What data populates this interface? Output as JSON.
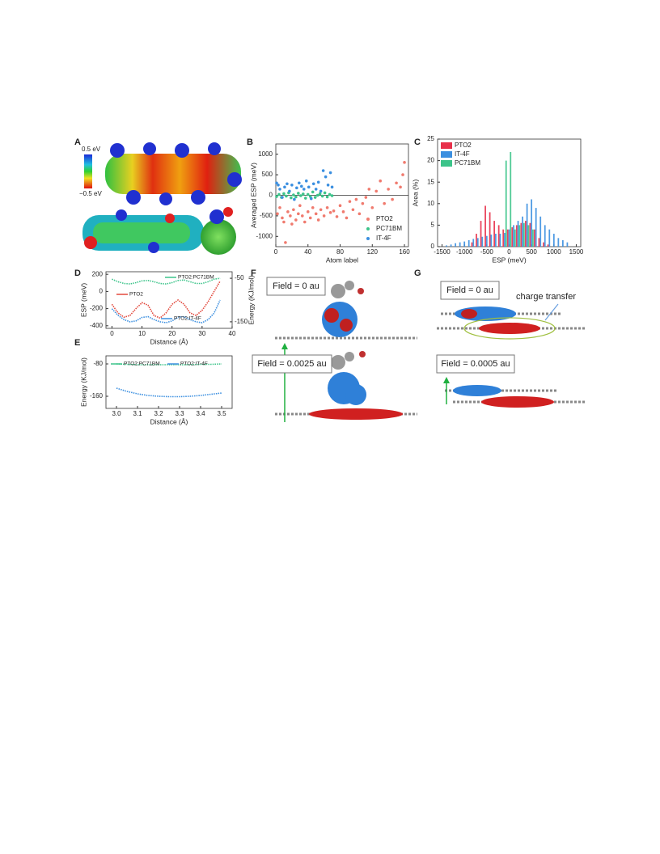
{
  "figure": {
    "panel_labels": [
      "A",
      "B",
      "C",
      "D",
      "E",
      "F",
      "G"
    ],
    "colorbar_labels": [
      "0.5 eV",
      "−0.5 eV"
    ],
    "field_labels_f": [
      "Field = 0 au",
      "Field = 0.0025 au"
    ],
    "field_labels_g": [
      "Field = 0 au",
      "Field = 0.0005 au"
    ],
    "annotation_g": "charge transfer"
  },
  "chart_data": [
    {
      "type": "scatter",
      "xlabel": "Atom label",
      "ylabel": "Averaged ESP (meV)",
      "xlim": [
        0,
        165
      ],
      "xticks": [
        0,
        40,
        80,
        120,
        160
      ],
      "ylim": [
        -1250,
        1250
      ],
      "yticks": [
        -1000,
        -500,
        0,
        500,
        1000
      ],
      "legend": "lower right",
      "series": [
        {
          "name": "PTO2",
          "color": "#f07a6e",
          "x": [
            2,
            5,
            8,
            10,
            12,
            15,
            18,
            20,
            22,
            25,
            28,
            30,
            33,
            36,
            40,
            43,
            46,
            50,
            53,
            56,
            60,
            64,
            68,
            72,
            76,
            80,
            84,
            88,
            92,
            96,
            100,
            104,
            108,
            112,
            116,
            120,
            125,
            130,
            135,
            140,
            145,
            150,
            155,
            158,
            160
          ],
          "values": [
            -450,
            -300,
            -550,
            -650,
            -1150,
            -400,
            -500,
            -700,
            -350,
            -600,
            -450,
            -250,
            -500,
            -650,
            -400,
            -550,
            -300,
            -450,
            -600,
            -350,
            -500,
            -300,
            -420,
            -380,
            -520,
            -250,
            -400,
            -550,
            -150,
            -350,
            -100,
            -450,
            -200,
            -50,
            150,
            -300,
            100,
            350,
            -200,
            150,
            -100,
            300,
            200,
            500,
            800
          ]
        },
        {
          "name": "PC71BM",
          "color": "#3cc48a",
          "x": [
            1,
            4,
            7,
            10,
            13,
            16,
            19,
            22,
            25,
            28,
            31,
            34,
            37,
            40,
            43,
            46,
            49,
            52,
            55,
            58,
            61,
            64,
            67,
            70
          ],
          "values": [
            -30,
            20,
            -50,
            40,
            -20,
            60,
            -60,
            10,
            -40,
            50,
            -10,
            30,
            -70,
            20,
            -30,
            80,
            -50,
            0,
            40,
            -20,
            60,
            -40,
            20,
            -10
          ]
        },
        {
          "name": "IT-4F",
          "color": "#3b8fe0",
          "x": [
            1,
            3,
            5,
            8,
            11,
            14,
            17,
            20,
            23,
            26,
            29,
            32,
            35,
            38,
            41,
            44,
            47,
            50,
            53,
            56,
            59,
            62,
            65,
            68,
            70
          ],
          "values": [
            300,
            250,
            150,
            -50,
            200,
            280,
            100,
            250,
            -100,
            180,
            300,
            220,
            150,
            350,
            200,
            -80,
            280,
            150,
            320,
            100,
            600,
            450,
            250,
            550,
            200
          ]
        }
      ]
    },
    {
      "type": "bar",
      "xlabel": "ESP (meV)",
      "ylabel": "Area (%)",
      "xlim": [
        -1600,
        1600
      ],
      "xticks": [
        -1500,
        -1000,
        -500,
        0,
        500,
        1000,
        1500
      ],
      "ylim": [
        0,
        25
      ],
      "yticks": [
        0,
        5,
        10,
        15,
        20,
        25
      ],
      "legend": "upper left",
      "x": [
        -1400,
        -1300,
        -1200,
        -1100,
        -1000,
        -900,
        -800,
        -700,
        -600,
        -500,
        -400,
        -300,
        -200,
        -100,
        0,
        100,
        200,
        300,
        400,
        500,
        600,
        700,
        800,
        900,
        1000,
        1100,
        1200,
        1300
      ],
      "series": [
        {
          "name": "PTO2",
          "color": "#e8304a",
          "values": [
            0,
            0,
            0,
            0,
            0,
            0,
            1,
            3,
            6,
            9.5,
            8,
            6,
            5,
            4,
            4,
            4.5,
            5,
            5.5,
            6,
            5.5,
            4,
            2,
            1,
            0.5,
            0,
            0,
            0,
            0
          ]
        },
        {
          "name": "IT-4F",
          "color": "#3b8fe0",
          "values": [
            0.3,
            0.5,
            0.8,
            1,
            1.2,
            1.5,
            1.8,
            2,
            2.3,
            2.5,
            2.8,
            3,
            3,
            3.2,
            4,
            5,
            6,
            7,
            10,
            11,
            9,
            7,
            5,
            4,
            3,
            2,
            1.5,
            1
          ]
        },
        {
          "name": "PC71BM",
          "color": "#3cc48a",
          "values": [
            0,
            0,
            0,
            0,
            0,
            0,
            0,
            0,
            0,
            0,
            0,
            0,
            0,
            20,
            22,
            4,
            5,
            5.5,
            5,
            4,
            0,
            0,
            0,
            0,
            0,
            0,
            0,
            0
          ]
        }
      ]
    },
    {
      "type": "line",
      "xlabel": "Distance (Å)",
      "ylabel": "ESP (meV)",
      "y2label": "Energy (KJ/mol)",
      "xlim": [
        -2,
        40
      ],
      "xticks": [
        0,
        10,
        20,
        30,
        40
      ],
      "ylim": [
        -430,
        230
      ],
      "yticks": [
        -400,
        -200,
        0,
        200
      ],
      "y2lim": [
        -165,
        -35
      ],
      "y2ticks": [
        -150,
        -50
      ],
      "legend": "inline",
      "x": [
        0,
        2,
        4,
        6,
        8,
        10,
        12,
        14,
        16,
        18,
        20,
        22,
        24,
        26,
        28,
        30,
        32,
        34,
        36
      ],
      "series": [
        {
          "name": "PTO2:PC71BM",
          "color": "#3cc48a",
          "axis": "y2",
          "values": [
            -52,
            -58,
            -62,
            -63,
            -60,
            -56,
            -55,
            -58,
            -62,
            -63,
            -60,
            -55,
            -54,
            -58,
            -62,
            -62,
            -58,
            -52,
            -50
          ]
        },
        {
          "name": "PTO2",
          "color": "#e2483c",
          "values": [
            -150,
            -250,
            -300,
            -280,
            -200,
            -130,
            -160,
            -280,
            -310,
            -250,
            -150,
            -100,
            -150,
            -250,
            -280,
            -220,
            -120,
            0,
            120
          ]
        },
        {
          "name": "PTO2:IT-4F",
          "color": "#3b8fe0",
          "axis": "y2",
          "values": [
            -120,
            -135,
            -145,
            -150,
            -148,
            -140,
            -138,
            -145,
            -150,
            -152,
            -148,
            -140,
            -138,
            -145,
            -150,
            -152,
            -145,
            -130,
            -100
          ]
        }
      ]
    },
    {
      "type": "line",
      "xlabel": "Distance (Å)",
      "ylabel": "Energy (KJ/mol)",
      "xlim": [
        2.95,
        3.55
      ],
      "xticks": [
        {
          "value": 3,
          "label": "3.0"
        },
        3.1,
        3.2,
        3.3,
        3.4,
        3.5
      ],
      "ylim": [
        -190,
        -60
      ],
      "yticks": [
        -80,
        -160
      ],
      "legend": "upper center",
      "x": [
        3.0,
        3.05,
        3.1,
        3.15,
        3.2,
        3.25,
        3.3,
        3.35,
        3.4,
        3.45,
        3.5
      ],
      "series": [
        {
          "name": "PTO2:PC71BM",
          "color": "#3cc48a",
          "values": [
            -80,
            -81,
            -82,
            -82,
            -82,
            -82,
            -82,
            -82,
            -81,
            -81,
            -80
          ]
        },
        {
          "name": "PTO2:IT-4F",
          "color": "#3b8fe0",
          "values": [
            -140,
            -148,
            -154,
            -158,
            -160,
            -161,
            -161,
            -160,
            -158,
            -155,
            -152
          ]
        }
      ]
    }
  ]
}
